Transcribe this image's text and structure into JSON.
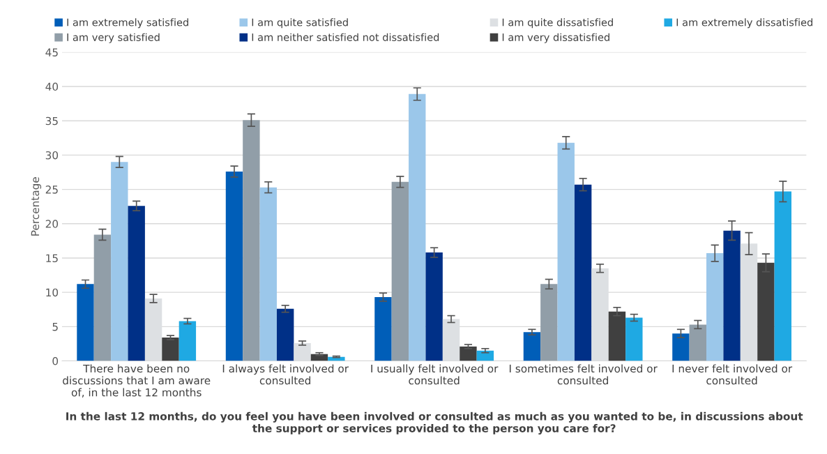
{
  "chart_data": {
    "type": "bar",
    "categories": [
      "There have been no\ndiscussions that I am aware\nof, in the last 12 months",
      "I always felt involved or\nconsulted",
      "I usually felt involved or\nconsulted",
      "I sometimes felt involved or\nconsulted",
      "I never felt involved or\nconsulted"
    ],
    "xlabel": "In the last 12 months, do you feel you have been involved or consulted as much as you wanted to be, in discussions about\nthe support or services provided to the person you care for?",
    "ylabel": "Percentage",
    "ylim": [
      0,
      45
    ],
    "yticks": [
      0,
      5,
      10,
      15,
      20,
      25,
      30,
      35,
      40,
      45
    ],
    "grid": "y",
    "legend": "top",
    "series": [
      {
        "name": "I am extremely satisfied",
        "color": "#005eb8",
        "values": [
          11.2,
          27.6,
          9.3,
          4.2,
          4.0
        ],
        "errors": [
          0.6,
          0.8,
          0.6,
          0.4,
          0.6
        ]
      },
      {
        "name": "I am very satisfied",
        "color": "#919ea8",
        "values": [
          18.4,
          35.1,
          26.1,
          11.2,
          5.3
        ],
        "errors": [
          0.8,
          0.9,
          0.8,
          0.7,
          0.6
        ]
      },
      {
        "name": "I am quite satisfied",
        "color": "#9bc7ea",
        "values": [
          29.0,
          25.3,
          38.9,
          31.8,
          15.7
        ],
        "errors": [
          0.8,
          0.8,
          0.9,
          0.9,
          1.2
        ]
      },
      {
        "name": "I am neither satisfied not dissatisfied",
        "color": "#003087",
        "values": [
          22.6,
          7.6,
          15.8,
          25.7,
          19.0
        ],
        "errors": [
          0.7,
          0.5,
          0.7,
          0.9,
          1.4
        ]
      },
      {
        "name": "I am quite dissatisfied",
        "color": "#dde0e3",
        "values": [
          9.1,
          2.6,
          6.1,
          13.5,
          17.1
        ],
        "errors": [
          0.6,
          0.3,
          0.5,
          0.6,
          1.6
        ]
      },
      {
        "name": "I am very dissatisfied",
        "color": "#404040",
        "values": [
          3.4,
          1.0,
          2.1,
          7.2,
          14.3
        ],
        "errors": [
          0.3,
          0.2,
          0.3,
          0.6,
          1.3
        ]
      },
      {
        "name": "I am extremely dissatisfied",
        "color": "#1fa9e3",
        "values": [
          5.8,
          0.6,
          1.5,
          6.3,
          24.7
        ],
        "errors": [
          0.4,
          0.1,
          0.3,
          0.5,
          1.5
        ]
      }
    ]
  }
}
